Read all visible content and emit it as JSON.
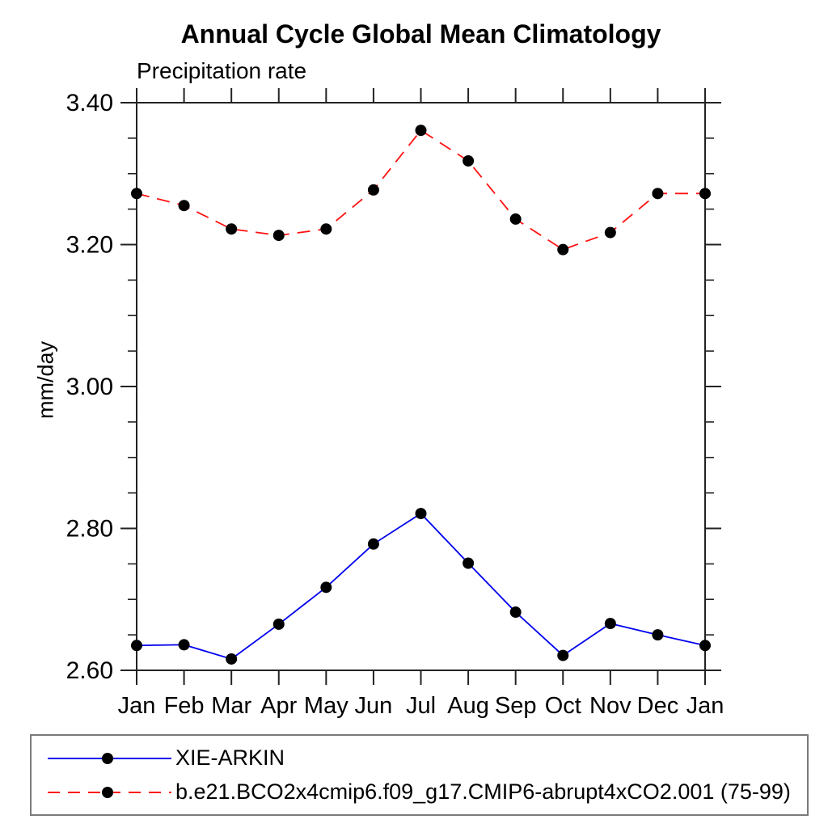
{
  "title": "Annual Cycle Global Mean Climatology",
  "subtitle": "Precipitation rate",
  "ylabel": "mm/day",
  "chart_data": {
    "type": "line",
    "categories": [
      "Jan",
      "Feb",
      "Mar",
      "Apr",
      "May",
      "Jun",
      "Jul",
      "Aug",
      "Sep",
      "Oct",
      "Nov",
      "Dec",
      "Jan"
    ],
    "title": "Annual Cycle Global Mean Climatology",
    "subtitle": "Precipitation rate",
    "xlabel": "",
    "ylabel": "mm/day",
    "ylim": [
      2.6,
      3.4
    ],
    "ytick_major": [
      2.6,
      2.8,
      3.0,
      3.2,
      3.4
    ],
    "ytick_labels": [
      "2.60",
      "2.80",
      "3.00",
      "3.20",
      "3.40"
    ],
    "ytick_minor_step": 0.05,
    "grid": false,
    "legend_position": "bottom",
    "marker_color": "#000000",
    "axis_color": "#222222",
    "series": [
      {
        "name": "XIE-ARKIN",
        "color": "#0000ee",
        "line_style": "solid",
        "marker": "black-dot",
        "values": [
          2.635,
          2.636,
          2.616,
          2.665,
          2.717,
          2.778,
          2.821,
          2.751,
          2.682,
          2.621,
          2.666,
          2.65,
          2.635
        ]
      },
      {
        "name": "b.e21.BCO2x4cmip6.f09_g17.CMIP6-abrupt4xCO2.001 (75-99)",
        "color": "#ff1111",
        "line_style": "dashed",
        "marker": "black-dot",
        "values": [
          3.272,
          3.255,
          3.222,
          3.213,
          3.222,
          3.277,
          3.361,
          3.318,
          3.236,
          3.193,
          3.217,
          3.272,
          3.272
        ]
      }
    ]
  }
}
